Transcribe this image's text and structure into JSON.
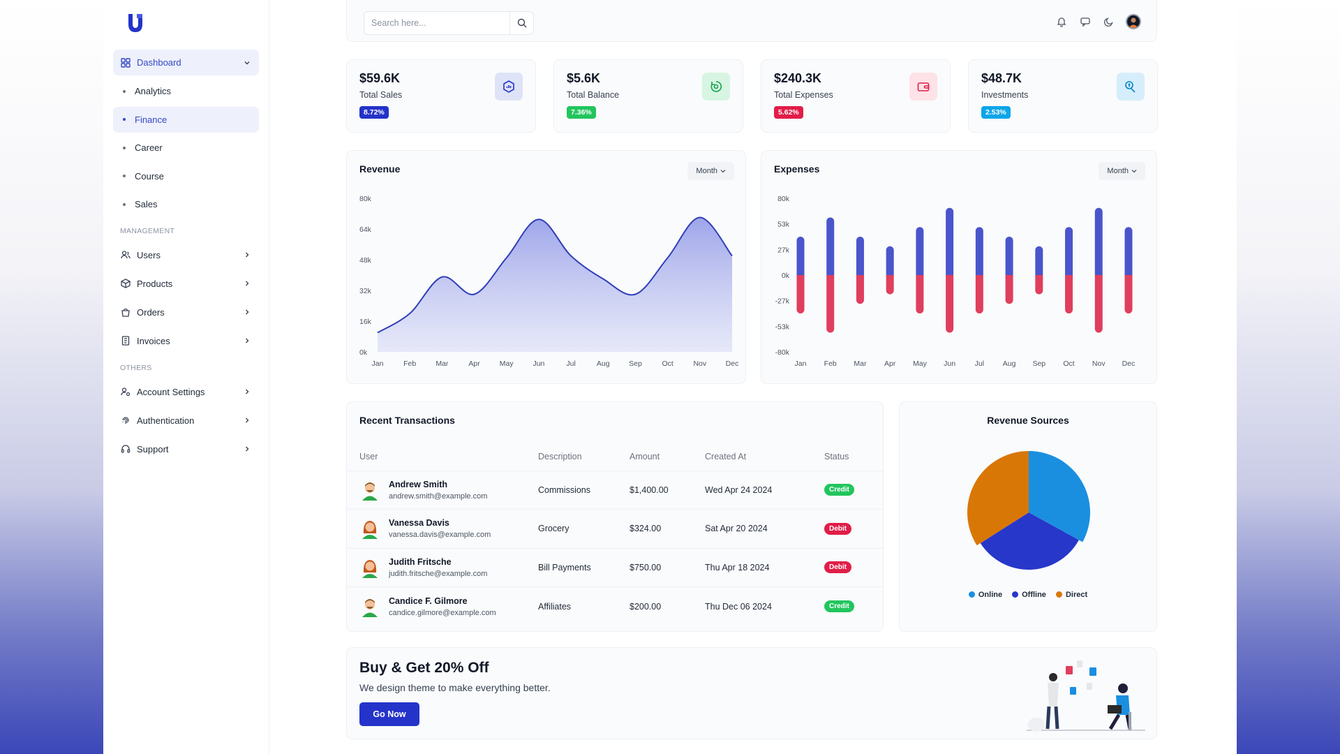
{
  "sidebar": {
    "dashboard": "Dashboard",
    "sub_items": [
      "Analytics",
      "Finance",
      "Career",
      "Course",
      "Sales"
    ],
    "management_title": "MANAGEMENT",
    "management": [
      "Users",
      "Products",
      "Orders",
      "Invoices"
    ],
    "others_title": "OTHERS",
    "others": [
      "Account Settings",
      "Authentication",
      "Support"
    ]
  },
  "topbar": {
    "search_placeholder": "Search here..."
  },
  "stats": [
    {
      "value": "$59.6K",
      "label": "Total Sales",
      "badge": "8.72%",
      "badge_color": "#2433c9",
      "icon": "chart-hexagon-icon"
    },
    {
      "value": "$5.6K",
      "label": "Total Balance",
      "badge": "7.36%",
      "badge_color": "#22c55e",
      "icon": "recycle-icon"
    },
    {
      "value": "$240.3K",
      "label": "Total Expenses",
      "badge": "5.62%",
      "badge_color": "#e11d48",
      "icon": "wallet-icon"
    },
    {
      "value": "$48.7K",
      "label": "Investments",
      "badge": "2.53%",
      "badge_color": "#0ea5e9",
      "icon": "hand-coin-icon"
    }
  ],
  "revenue": {
    "title": "Revenue",
    "period": "Month",
    "chart_data": {
      "type": "area",
      "categories": [
        "Jan",
        "Feb",
        "Mar",
        "Apr",
        "May",
        "Jun",
        "Jul",
        "Aug",
        "Sep",
        "Oct",
        "Nov",
        "Dec"
      ],
      "values": [
        10000,
        20000,
        39000,
        30000,
        49000,
        69000,
        50000,
        38000,
        30000,
        49000,
        70000,
        50000
      ],
      "yticks": [
        "0k",
        "16k",
        "32k",
        "48k",
        "64k",
        "80k"
      ],
      "ylim": [
        0,
        80000
      ],
      "color": "#2f3fb8"
    }
  },
  "expenses": {
    "title": "Expenses",
    "period": "Month",
    "chart_data": {
      "type": "bar",
      "categories": [
        "Jan",
        "Feb",
        "Mar",
        "Apr",
        "May",
        "Jun",
        "Jul",
        "Aug",
        "Sep",
        "Oct",
        "Nov",
        "Dec"
      ],
      "series": [
        {
          "values": [
            40,
            60,
            40,
            30,
            50,
            70,
            50,
            40,
            30,
            50,
            70,
            50
          ],
          "color": "#4a55cc"
        },
        {
          "values": [
            -40,
            -60,
            -30,
            -20,
            -40,
            -60,
            -40,
            -30,
            -20,
            -40,
            -60,
            -40
          ],
          "color": "#e03e5e"
        }
      ],
      "yticks": [
        "80k",
        "53k",
        "27k",
        "0k",
        "-27k",
        "-53k",
        "-80k"
      ],
      "ylim": [
        -80,
        80
      ]
    }
  },
  "transactions": {
    "title": "Recent Transactions",
    "headers": [
      "User",
      "Description",
      "Amount",
      "Created At",
      "Status"
    ],
    "rows": [
      {
        "name": "Andrew Smith",
        "email": "andrew.smith@example.com",
        "desc": "Commissions",
        "amount": "$1,400.00",
        "date": "Wed Apr 24 2024",
        "status": "Credit",
        "status_color": "#22c55e",
        "avatar": "man-avatar"
      },
      {
        "name": "Vanessa Davis",
        "email": "vanessa.davis@example.com",
        "desc": "Grocery",
        "amount": "$324.00",
        "date": "Sat Apr 20 2024",
        "status": "Debit",
        "status_color": "#e11d48",
        "avatar": "woman-avatar"
      },
      {
        "name": "Judith Fritsche",
        "email": "judith.fritsche@example.com",
        "desc": "Bill Payments",
        "amount": "$750.00",
        "date": "Thu Apr 18 2024",
        "status": "Debit",
        "status_color": "#e11d48",
        "avatar": "woman-avatar"
      },
      {
        "name": "Candice F. Gilmore",
        "email": "candice.gilmore@example.com",
        "desc": "Affiliates",
        "amount": "$200.00",
        "date": "Thu Dec 06 2024",
        "status": "Credit",
        "status_color": "#22c55e",
        "avatar": "man-avatar"
      }
    ]
  },
  "revenue_sources": {
    "title": "Revenue Sources",
    "chart_data": {
      "type": "pie",
      "labels": [
        "Online",
        "Offline",
        "Direct"
      ],
      "values": [
        33,
        33,
        34
      ],
      "colors": [
        "#1a8fe0",
        "#2737c9",
        "#d97706"
      ]
    }
  },
  "promo": {
    "title": "Buy & Get 20% Off",
    "subtitle": "We design theme to make everything better.",
    "button": "Go Now"
  }
}
